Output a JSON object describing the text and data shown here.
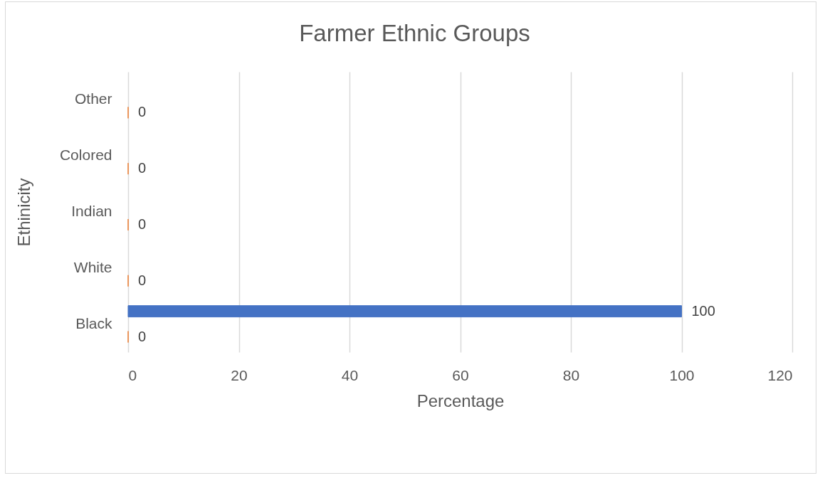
{
  "chart_data": {
    "type": "bar",
    "orientation": "horizontal",
    "title": "Farmer Ethnic Groups",
    "xlabel": "Percentage",
    "ylabel": "Ethinicity",
    "categories": [
      "Other",
      "Colored",
      "Indian",
      "White",
      "Black"
    ],
    "series": [
      {
        "color": "#4472c4",
        "values": [
          null,
          null,
          null,
          null,
          100
        ]
      },
      {
        "color": "#ed7d31",
        "values": [
          0,
          0,
          0,
          0,
          0
        ]
      }
    ],
    "xlim": [
      0,
      120
    ],
    "xticks": [
      0,
      20,
      40,
      60,
      80,
      100,
      120
    ],
    "grid": "x",
    "data_labels": true
  }
}
